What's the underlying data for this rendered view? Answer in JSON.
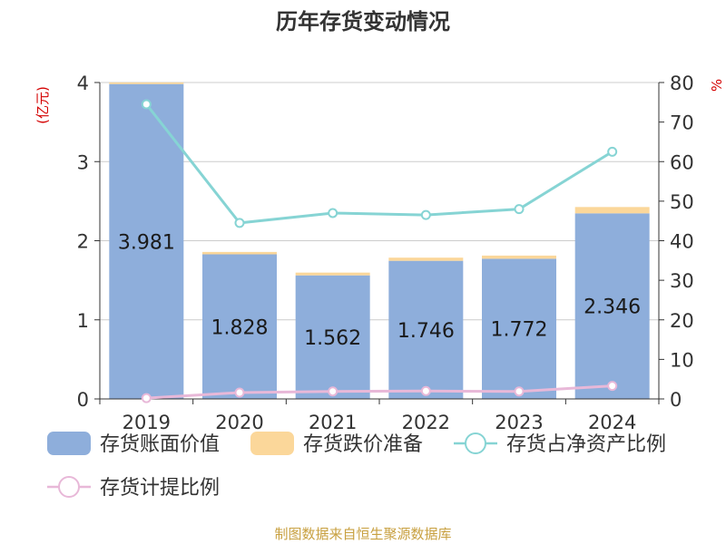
{
  "chart_data": {
    "type": "bar",
    "title": "历年存货变动情况",
    "source": "制图数据来自恒生聚源数据库",
    "y_left_unit": "(亿元)",
    "y_right_unit": "%",
    "categories": [
      "2019",
      "2020",
      "2021",
      "2022",
      "2023",
      "2024"
    ],
    "ylim_left": [
      0,
      4
    ],
    "ylim_right": [
      0,
      80
    ],
    "left_ticks": [
      "0",
      "1",
      "2",
      "3",
      "4"
    ],
    "right_ticks": [
      "0",
      "10",
      "20",
      "30",
      "40",
      "50",
      "60",
      "70",
      "80"
    ],
    "grid": true,
    "legend_position": "bottom",
    "bar_series": [
      {
        "name": "存货账面价值",
        "color": "#8eaedb",
        "values": [
          3.981,
          1.828,
          1.562,
          1.746,
          1.772,
          2.346
        ],
        "labels": [
          "3.981",
          "1.828",
          "1.562",
          "1.746",
          "1.772",
          "2.346"
        ]
      },
      {
        "name": "存货跌价准备",
        "color": "#fbd79a",
        "values": [
          0.02,
          0.03,
          0.035,
          0.04,
          0.04,
          0.08
        ]
      }
    ],
    "line_series": [
      {
        "name": "存货占净资产比例",
        "color": "#86d4d4",
        "axis": "right",
        "values": [
          74.5,
          44.5,
          47.0,
          46.5,
          48.0,
          62.5
        ]
      },
      {
        "name": "存货计提比例",
        "color": "#e8b8d8",
        "axis": "right",
        "values": [
          0.2,
          1.6,
          1.9,
          2.0,
          1.9,
          3.3
        ]
      }
    ]
  }
}
